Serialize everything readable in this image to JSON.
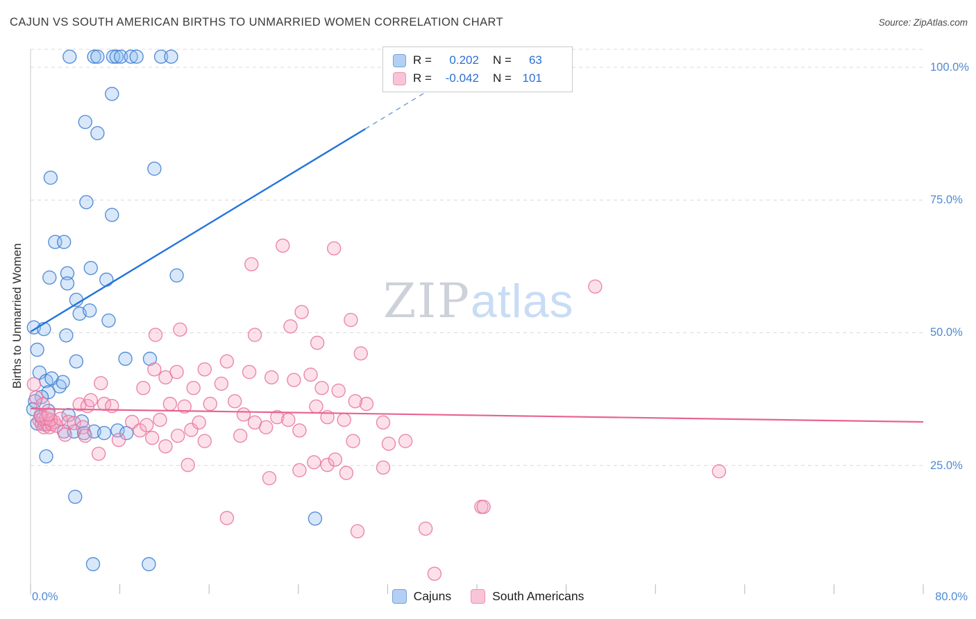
{
  "chart_data": {
    "type": "scatter",
    "title": "CAJUN VS SOUTH AMERICAN BIRTHS TO UNMARRIED WOMEN CORRELATION CHART",
    "source": "Source: ZipAtlas.com",
    "ylabel": "Births to Unmarried Women",
    "watermark": {
      "part1": "ZIP",
      "part2": "atlas"
    },
    "x_axis": {
      "min": 0,
      "max": 80,
      "min_label": "0.0%",
      "max_label": "80.0%",
      "grid": false
    },
    "y_axis": {
      "min": 0,
      "max": 105,
      "ticks": [
        {
          "value": 100,
          "label": "100.0%"
        },
        {
          "value": 75,
          "label": "75.0%"
        },
        {
          "value": 50,
          "label": "50.0%"
        },
        {
          "value": 25,
          "label": "25.0%"
        }
      ],
      "grid": "dashed",
      "label_side": "right"
    },
    "stats": [
      {
        "r_label": "R =",
        "r_value": "0.202",
        "n_label": "N =",
        "n_value": "63"
      },
      {
        "r_label": "R =",
        "r_value": "-0.042",
        "n_label": "N =",
        "n_value": "101"
      }
    ],
    "legend": [
      {
        "label": "Cajuns",
        "fill": "#B3D0F4",
        "stroke": "#6FA2DC"
      },
      {
        "label": "South Americans",
        "fill": "#F9C4D8",
        "stroke": "#EE93B4"
      }
    ],
    "series": [
      {
        "name": "Cajuns",
        "fill": "#8FBCF2",
        "stroke": "#3D7CD0",
        "points": [
          [
            3.5,
            102
          ],
          [
            5.7,
            102
          ],
          [
            6.0,
            102
          ],
          [
            7.4,
            102
          ],
          [
            7.7,
            102
          ],
          [
            8.1,
            102
          ],
          [
            9.0,
            102
          ],
          [
            9.5,
            102
          ],
          [
            11.7,
            102
          ],
          [
            12.6,
            102
          ],
          [
            7.3,
            95
          ],
          [
            4.9,
            89.7
          ],
          [
            6.0,
            87.6
          ],
          [
            11.1,
            80.9
          ],
          [
            1.8,
            79.2
          ],
          [
            5.0,
            74.6
          ],
          [
            7.3,
            72.2
          ],
          [
            2.2,
            67.1
          ],
          [
            3.0,
            67.1
          ],
          [
            5.4,
            62.2
          ],
          [
            1.7,
            60.4
          ],
          [
            3.3,
            61.2
          ],
          [
            3.3,
            59.3
          ],
          [
            6.8,
            60.0
          ],
          [
            13.1,
            60.8
          ],
          [
            4.1,
            56.2
          ],
          [
            4.4,
            53.6
          ],
          [
            5.3,
            54.2
          ],
          [
            7.0,
            52.3
          ],
          [
            0.3,
            51.0
          ],
          [
            1.2,
            50.7
          ],
          [
            3.2,
            49.5
          ],
          [
            0.6,
            46.8
          ],
          [
            4.1,
            44.6
          ],
          [
            8.5,
            45.1
          ],
          [
            10.7,
            45.1
          ],
          [
            0.8,
            42.5
          ],
          [
            1.4,
            40.9
          ],
          [
            1.9,
            41.4
          ],
          [
            2.6,
            39.9
          ],
          [
            2.9,
            40.7
          ],
          [
            1.6,
            38.8
          ],
          [
            1.0,
            37.9
          ],
          [
            0.4,
            37.1
          ],
          [
            0.25,
            35.6
          ],
          [
            0.9,
            34.2
          ],
          [
            1.6,
            35.3
          ],
          [
            0.6,
            32.9
          ],
          [
            1.3,
            32.7
          ],
          [
            3.4,
            34.5
          ],
          [
            4.6,
            33.3
          ],
          [
            3.0,
            31.4
          ],
          [
            3.9,
            31.4
          ],
          [
            4.8,
            31.1
          ],
          [
            5.7,
            31.4
          ],
          [
            6.6,
            31.1
          ],
          [
            7.8,
            31.6
          ],
          [
            8.6,
            31.1
          ],
          [
            1.4,
            26.7
          ],
          [
            4.0,
            19.1
          ],
          [
            25.5,
            15.0
          ],
          [
            5.6,
            6.4
          ],
          [
            10.6,
            6.4
          ]
        ]
      },
      {
        "name": "South Americans",
        "fill": "#F7A8C6",
        "stroke": "#E8739C",
        "points": [
          [
            0.8,
            33.5
          ],
          [
            1.0,
            32.8
          ],
          [
            1.2,
            32.2
          ],
          [
            1.5,
            32.8
          ],
          [
            1.7,
            32.2
          ],
          [
            1.9,
            32.8
          ],
          [
            2.1,
            33.2
          ],
          [
            2.3,
            32.5
          ],
          [
            1.1,
            33.8
          ],
          [
            1.4,
            33.9
          ],
          [
            1.8,
            33.6
          ],
          [
            0.9,
            34.5
          ],
          [
            1.6,
            34.6
          ],
          [
            2.7,
            33.8
          ],
          [
            0.3,
            40.3
          ],
          [
            0.5,
            37.8
          ],
          [
            1.1,
            36.5
          ],
          [
            3.1,
            30.8
          ],
          [
            3.4,
            33.2
          ],
          [
            3.9,
            33.0
          ],
          [
            4.4,
            36.5
          ],
          [
            4.7,
            32.2
          ],
          [
            5.1,
            36.2
          ],
          [
            5.4,
            37.3
          ],
          [
            6.3,
            40.5
          ],
          [
            6.6,
            36.6
          ],
          [
            7.3,
            36.2
          ],
          [
            4.9,
            30.6
          ],
          [
            6.1,
            27.2
          ],
          [
            7.9,
            29.8
          ],
          [
            9.1,
            33.2
          ],
          [
            9.8,
            31.6
          ],
          [
            10.4,
            32.6
          ],
          [
            10.9,
            30.2
          ],
          [
            11.6,
            33.6
          ],
          [
            12.5,
            36.6
          ],
          [
            13.2,
            30.6
          ],
          [
            13.8,
            36.1
          ],
          [
            14.4,
            31.7
          ],
          [
            15.1,
            33.1
          ],
          [
            16.1,
            36.6
          ],
          [
            17.1,
            40.4
          ],
          [
            18.3,
            37.1
          ],
          [
            19.1,
            34.6
          ],
          [
            20.1,
            33.1
          ],
          [
            21.1,
            32.2
          ],
          [
            22.1,
            34.1
          ],
          [
            23.1,
            33.6
          ],
          [
            24.1,
            31.6
          ],
          [
            25.6,
            36.1
          ],
          [
            26.6,
            34.1
          ],
          [
            28.1,
            33.6
          ],
          [
            30.1,
            36.6
          ],
          [
            31.6,
            33.1
          ],
          [
            33.6,
            29.6
          ],
          [
            10.1,
            39.6
          ],
          [
            12.1,
            41.6
          ],
          [
            14.6,
            39.6
          ],
          [
            11.1,
            43.1
          ],
          [
            13.1,
            42.6
          ],
          [
            15.6,
            43.1
          ],
          [
            17.6,
            44.6
          ],
          [
            19.6,
            42.6
          ],
          [
            21.6,
            41.6
          ],
          [
            23.6,
            41.1
          ],
          [
            25.1,
            42.1
          ],
          [
            11.2,
            49.6
          ],
          [
            13.4,
            50.6
          ],
          [
            20.1,
            49.6
          ],
          [
            25.7,
            48.1
          ],
          [
            28.7,
            52.4
          ],
          [
            24.3,
            53.9
          ],
          [
            23.3,
            51.2
          ],
          [
            19.8,
            62.9
          ],
          [
            22.6,
            66.4
          ],
          [
            27.2,
            65.9
          ],
          [
            50.6,
            58.7
          ],
          [
            29.6,
            46.1
          ],
          [
            27.6,
            39.1
          ],
          [
            29.1,
            37.1
          ],
          [
            26.1,
            39.6
          ],
          [
            12.1,
            28.6
          ],
          [
            15.6,
            29.6
          ],
          [
            18.8,
            30.6
          ],
          [
            14.1,
            25.1
          ],
          [
            21.4,
            22.6
          ],
          [
            24.1,
            24.1
          ],
          [
            25.4,
            25.6
          ],
          [
            26.6,
            25.1
          ],
          [
            27.3,
            26.1
          ],
          [
            28.3,
            23.6
          ],
          [
            31.6,
            24.6
          ],
          [
            28.9,
            29.6
          ],
          [
            32.1,
            29.1
          ],
          [
            17.6,
            15.1
          ],
          [
            29.3,
            12.6
          ],
          [
            35.4,
            13.1
          ],
          [
            40.4,
            17.2
          ],
          [
            40.6,
            17.2
          ],
          [
            36.2,
            4.6
          ],
          [
            61.7,
            23.9
          ]
        ]
      }
    ],
    "trend_lines": [
      {
        "series": "Cajuns",
        "color": "#2273DD",
        "width": 2.4,
        "dash": null,
        "points": [
          [
            0,
            50.2
          ],
          [
            30,
            88.4
          ]
        ]
      },
      {
        "series": "Cajuns projection",
        "color": "#6B97D9",
        "width": 1.4,
        "dash": "7 6",
        "points": [
          [
            30,
            88.4
          ],
          [
            36.8,
            97.1
          ]
        ]
      },
      {
        "series": "South Americans",
        "color": "#E8638F",
        "width": 2.2,
        "dash": null,
        "points": [
          [
            0,
            35.7
          ],
          [
            80,
            33.2
          ]
        ]
      }
    ]
  }
}
